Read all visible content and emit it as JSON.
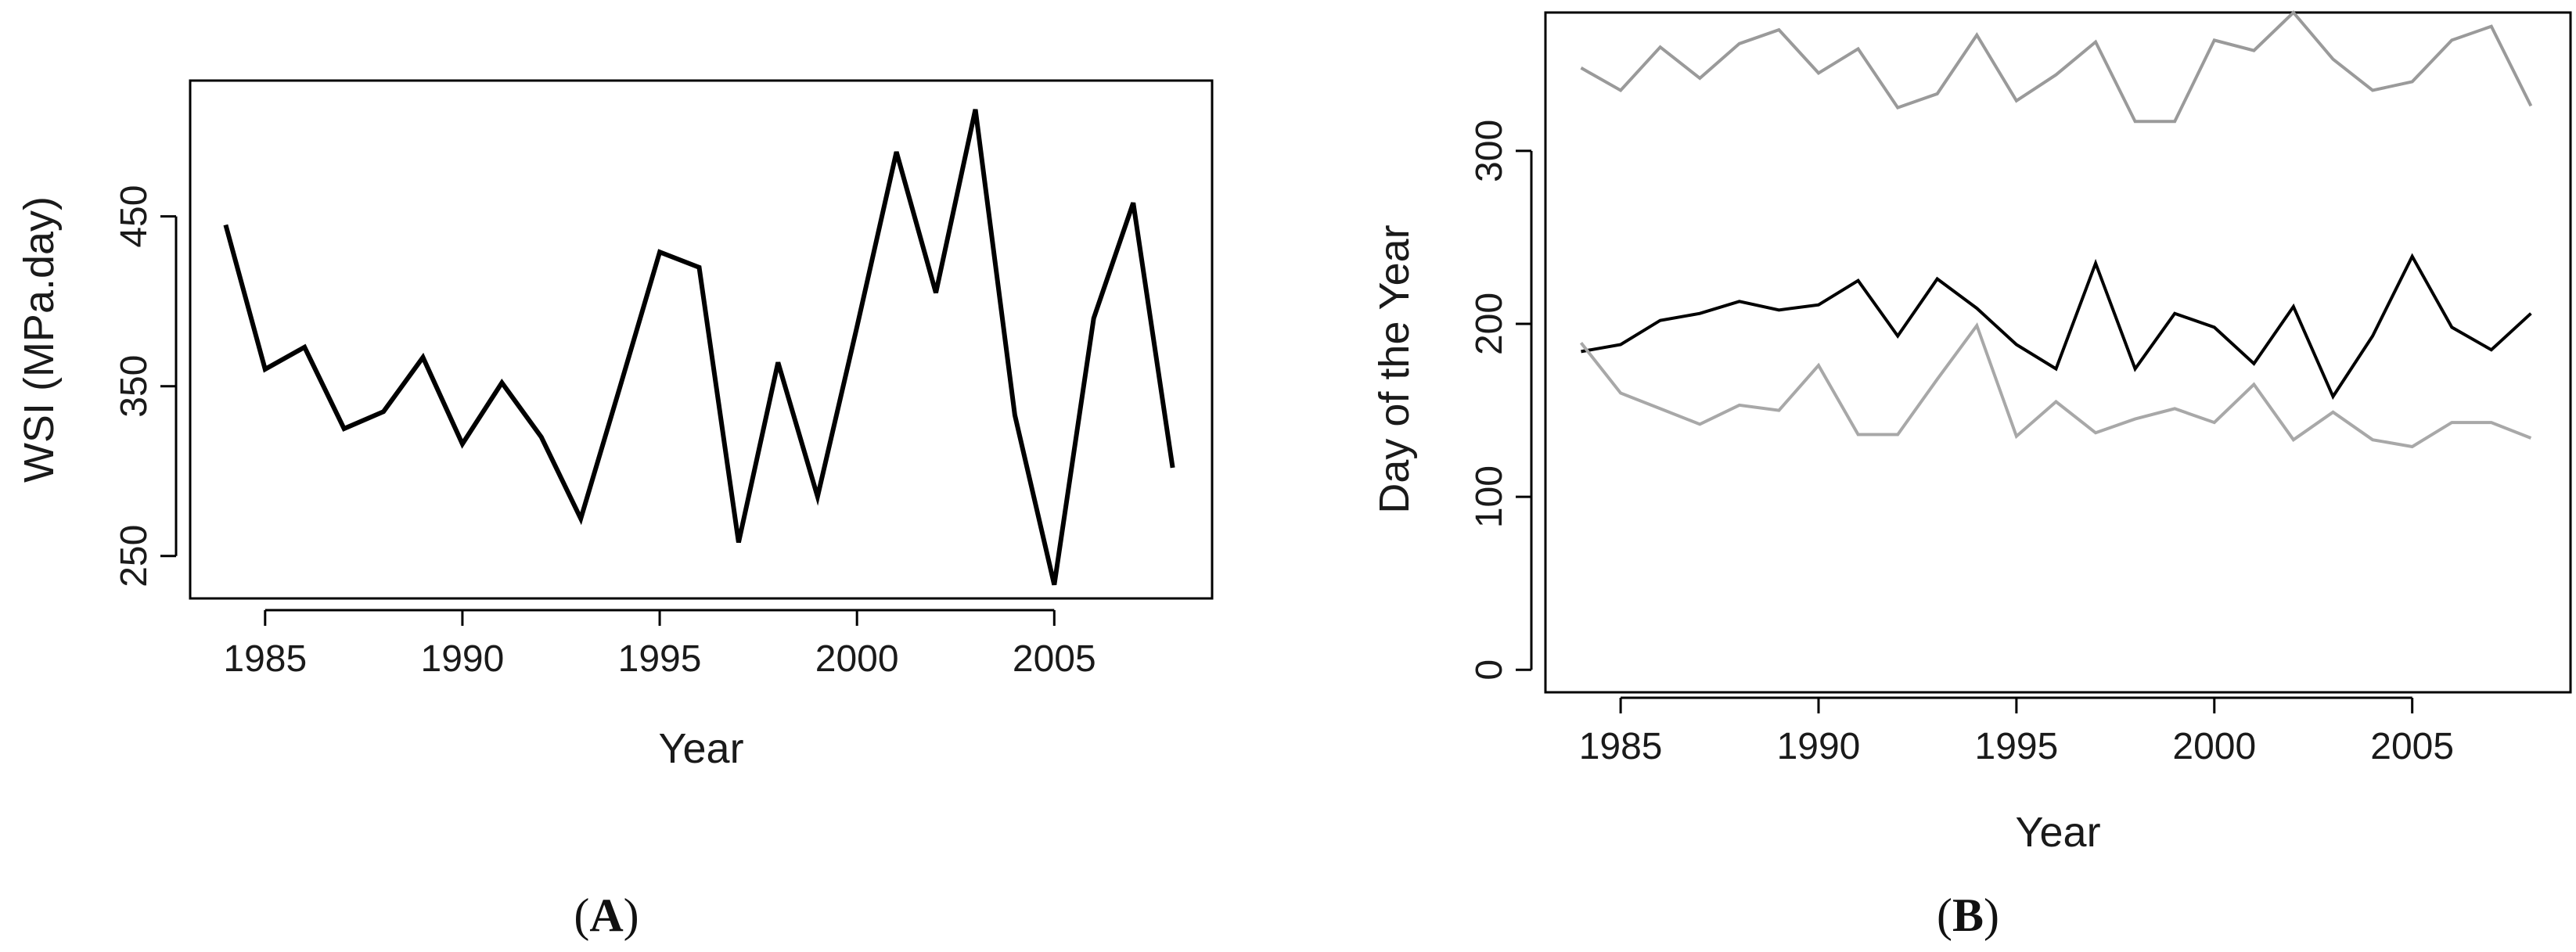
{
  "chart_data": [
    {
      "panel_label": "A",
      "type": "line",
      "xlabel": "Year",
      "ylabel": "WSI (MPa.day)",
      "xlim": [
        1983.1,
        2009.0
      ],
      "ylim": [
        225,
        530
      ],
      "xticks": [
        1985,
        1990,
        1995,
        2000,
        2005
      ],
      "yticks": [
        250,
        350,
        450
      ],
      "grid": false,
      "series": [
        {
          "color": "#000000",
          "x": [
            1984,
            1985,
            1986,
            1987,
            1988,
            1989,
            1990,
            1991,
            1992,
            1993,
            1994,
            1995,
            1996,
            1997,
            1998,
            1999,
            2000,
            2001,
            2002,
            2003,
            2004,
            2005,
            2006,
            2007,
            2008
          ],
          "values": [
            445,
            360,
            373,
            325,
            335,
            367,
            316,
            352,
            320,
            272,
            350,
            429,
            420,
            258,
            364,
            285,
            385,
            488,
            405,
            513,
            333,
            233,
            390,
            458,
            302
          ]
        }
      ]
    },
    {
      "panel_label": "B",
      "type": "line",
      "xlabel": "Year",
      "ylabel": "Day of the Year",
      "xlim": [
        1983.1,
        2009.0
      ],
      "ylim": [
        -13,
        380
      ],
      "xticks": [
        1985,
        1990,
        1995,
        2000,
        2005
      ],
      "yticks": [
        0,
        100,
        200,
        300
      ],
      "grid": false,
      "series": [
        {
          "color": "#9a9a9a",
          "x": [
            1984,
            1985,
            1986,
            1987,
            1988,
            1989,
            1990,
            1991,
            1992,
            1993,
            1994,
            1995,
            1996,
            1997,
            1998,
            1999,
            2000,
            2001,
            2002,
            2003,
            2004,
            2005,
            2006,
            2007,
            2008
          ],
          "values": [
            348,
            335,
            360,
            342,
            362,
            370,
            345,
            359,
            325,
            333,
            367,
            329,
            344,
            363,
            317,
            317,
            364,
            358,
            380,
            353,
            335,
            340,
            364,
            372,
            326
          ]
        },
        {
          "color": "#000000",
          "x": [
            1984,
            1985,
            1986,
            1987,
            1988,
            1989,
            1990,
            1991,
            1992,
            1993,
            1994,
            1995,
            1996,
            1997,
            1998,
            1999,
            2000,
            2001,
            2002,
            2003,
            2004,
            2005,
            2006,
            2007,
            2008
          ],
          "values": [
            184,
            188,
            202,
            206,
            213,
            208,
            211,
            225,
            193,
            226,
            209,
            188,
            174,
            235,
            174,
            206,
            198,
            177,
            210,
            158,
            193,
            239,
            198,
            185,
            206
          ]
        },
        {
          "color": "#a8a8a8",
          "x": [
            1984,
            1985,
            1986,
            1987,
            1988,
            1989,
            1990,
            1991,
            1992,
            1993,
            1994,
            1995,
            1996,
            1997,
            1998,
            1999,
            2000,
            2001,
            2002,
            2003,
            2004,
            2005,
            2006,
            2007,
            2008
          ],
          "values": [
            189,
            160,
            151,
            142,
            153,
            150,
            176,
            136,
            136,
            168,
            199,
            135,
            155,
            137,
            145,
            151,
            143,
            165,
            133,
            149,
            133,
            129,
            143,
            143,
            134
          ]
        }
      ]
    }
  ]
}
